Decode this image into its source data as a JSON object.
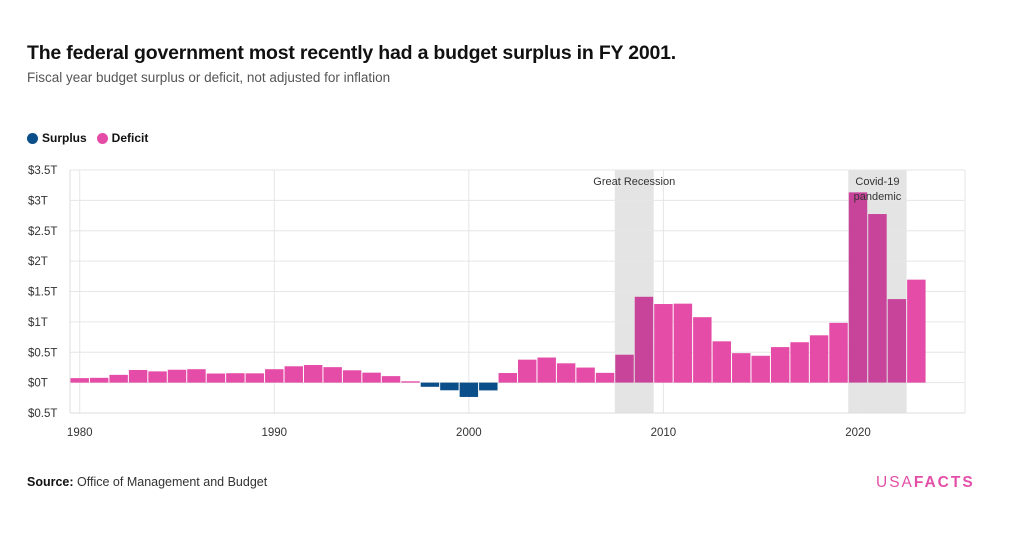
{
  "title": "The federal government most recently had a budget surplus in FY 2001.",
  "subtitle": "Fiscal year budget surplus or deficit, not adjusted for inflation",
  "legend": [
    {
      "label": "Surplus",
      "color": "#0b4f8a"
    },
    {
      "label": "Deficit",
      "color": "#e54ca8"
    }
  ],
  "source_label": "Source:",
  "source_text": "Office of Management and Budget",
  "logo": {
    "usa": "USA",
    "facts": "FACTS"
  },
  "chart_data": {
    "type": "bar",
    "title": "The federal government most recently had a budget surplus in FY 2001.",
    "subtitle": "Fiscal year budget surplus or deficit, not adjusted for inflation",
    "xlabel": "",
    "ylabel": "",
    "ylim": [
      -0.5,
      3.5
    ],
    "y_ticks": [
      {
        "value": 3.5,
        "label": "$3.5T"
      },
      {
        "value": 3,
        "label": "$3T"
      },
      {
        "value": 2.5,
        "label": "$2.5T"
      },
      {
        "value": 2,
        "label": "$2T"
      },
      {
        "value": 1.5,
        "label": "$1.5T"
      },
      {
        "value": 1,
        "label": "$1T"
      },
      {
        "value": 0.5,
        "label": "$0.5T"
      },
      {
        "value": 0,
        "label": "$0T"
      },
      {
        "value": -0.5,
        "label": "$0.5T"
      }
    ],
    "x_ticks": [
      1980,
      1990,
      2000,
      2010,
      2020
    ],
    "grid": true,
    "legend_position": "top-left",
    "colors": {
      "surplus": "#0b4f8a",
      "deficit": "#e54ca8",
      "deficit_shaded": "#c8439a",
      "recession": "#e4e4e4"
    },
    "shaded_regions": [
      {
        "label": "Great Recession",
        "start": 2007.5,
        "end": 2009.5
      },
      {
        "label": "Covid-19 pandemic",
        "start": 2019.5,
        "end": 2022.5
      }
    ],
    "series": [
      {
        "name": "Surplus",
        "points": [
          {
            "year": 1998,
            "value": 0.069
          },
          {
            "year": 1999,
            "value": 0.126
          },
          {
            "year": 2000,
            "value": 0.236
          },
          {
            "year": 2001,
            "value": 0.128
          }
        ]
      },
      {
        "name": "Deficit",
        "points": [
          {
            "year": 1980,
            "value": 0.074
          },
          {
            "year": 1981,
            "value": 0.079
          },
          {
            "year": 1982,
            "value": 0.128
          },
          {
            "year": 1983,
            "value": 0.208
          },
          {
            "year": 1984,
            "value": 0.185
          },
          {
            "year": 1985,
            "value": 0.212
          },
          {
            "year": 1986,
            "value": 0.221
          },
          {
            "year": 1987,
            "value": 0.15
          },
          {
            "year": 1988,
            "value": 0.155
          },
          {
            "year": 1989,
            "value": 0.153
          },
          {
            "year": 1990,
            "value": 0.221
          },
          {
            "year": 1991,
            "value": 0.269
          },
          {
            "year": 1992,
            "value": 0.29
          },
          {
            "year": 1993,
            "value": 0.255
          },
          {
            "year": 1994,
            "value": 0.203
          },
          {
            "year": 1995,
            "value": 0.164
          },
          {
            "year": 1996,
            "value": 0.107
          },
          {
            "year": 1997,
            "value": 0.022
          },
          {
            "year": 2002,
            "value": 0.158
          },
          {
            "year": 2003,
            "value": 0.378
          },
          {
            "year": 2004,
            "value": 0.413
          },
          {
            "year": 2005,
            "value": 0.318
          },
          {
            "year": 2006,
            "value": 0.248
          },
          {
            "year": 2007,
            "value": 0.161
          },
          {
            "year": 2008,
            "value": 0.459
          },
          {
            "year": 2009,
            "value": 1.413
          },
          {
            "year": 2010,
            "value": 1.294
          },
          {
            "year": 2011,
            "value": 1.3
          },
          {
            "year": 2012,
            "value": 1.077
          },
          {
            "year": 2013,
            "value": 0.68
          },
          {
            "year": 2014,
            "value": 0.485
          },
          {
            "year": 2015,
            "value": 0.442
          },
          {
            "year": 2016,
            "value": 0.585
          },
          {
            "year": 2017,
            "value": 0.665
          },
          {
            "year": 2018,
            "value": 0.779
          },
          {
            "year": 2019,
            "value": 0.984
          },
          {
            "year": 2020,
            "value": 3.132
          },
          {
            "year": 2021,
            "value": 2.775
          },
          {
            "year": 2022,
            "value": 1.375
          },
          {
            "year": 2023,
            "value": 1.695
          }
        ]
      }
    ]
  }
}
